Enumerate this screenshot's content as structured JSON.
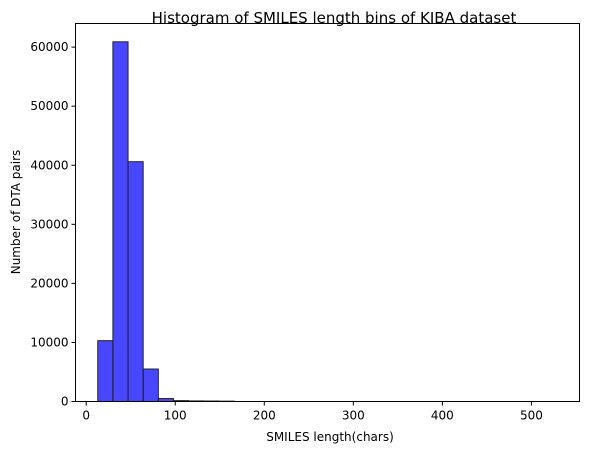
{
  "chart_data": {
    "type": "bar",
    "title": "Histogram of SMILES length bins of KIBA dataset",
    "xlabel": "SMILES length(chars)",
    "ylabel": "Number of DTA pairs",
    "xlim": [
      -12,
      554
    ],
    "ylim": [
      0,
      64000
    ],
    "xticks": [
      0,
      100,
      200,
      300,
      400,
      500
    ],
    "yticks": [
      0,
      10000,
      20000,
      30000,
      40000,
      50000,
      60000
    ],
    "bins": [
      {
        "x0": 13,
        "x1": 30,
        "value": 10300
      },
      {
        "x0": 30,
        "x1": 47,
        "value": 60900
      },
      {
        "x0": 47,
        "x1": 64,
        "value": 40600
      },
      {
        "x0": 64,
        "x1": 81,
        "value": 5500
      },
      {
        "x0": 81,
        "x1": 98,
        "value": 500
      },
      {
        "x0": 98,
        "x1": 115,
        "value": 150
      },
      {
        "x0": 115,
        "x1": 132,
        "value": 100
      },
      {
        "x0": 132,
        "x1": 149,
        "value": 80
      },
      {
        "x0": 149,
        "x1": 166,
        "value": 60
      },
      {
        "x0": 166,
        "x1": 533,
        "value": 0
      }
    ],
    "grid": false,
    "legend": "none"
  }
}
